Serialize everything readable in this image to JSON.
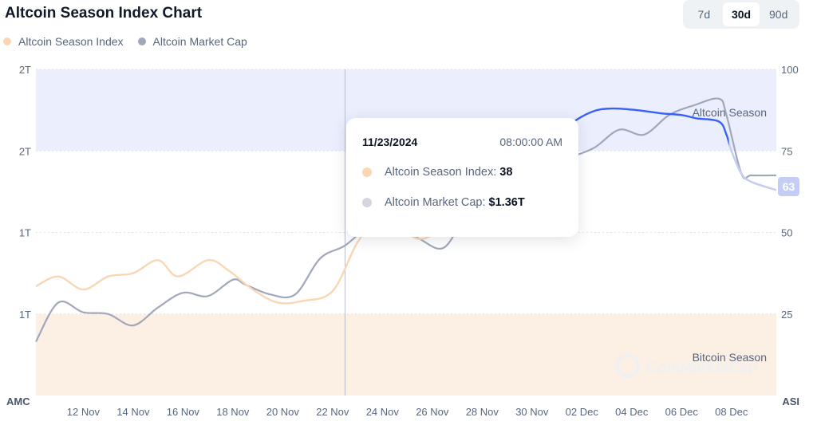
{
  "header": {
    "title": "Altcoin Season Index Chart"
  },
  "range_buttons": [
    {
      "label": "7d",
      "active": false
    },
    {
      "label": "30d",
      "active": true
    },
    {
      "label": "90d",
      "active": false
    }
  ],
  "legend": [
    {
      "label": "Altcoin Season Index",
      "color": "#fad7b4"
    },
    {
      "label": "Altcoin Market Cap",
      "color": "#a1a7bb"
    }
  ],
  "tooltip": {
    "date": "11/23/2024",
    "time": "08:00:00 AM",
    "index_label": "Altcoin Season Index:",
    "index_value": "38",
    "mcap_label": "Altcoin Market Cap:",
    "mcap_value": "$1.36T"
  },
  "zones": {
    "altcoin": "Altcoin Season",
    "bitcoin": "Bitcoin Season"
  },
  "watermark": "CoinMarketCap",
  "colors": {
    "index_line": "#fad7b4",
    "index_line_strong": "#3861fb",
    "index_line_faded": "#c3cdf5",
    "mcap_line": "#a1a7bb",
    "altcoin_zone": "#eaeefd",
    "bitcoin_zone": "#fcefe4",
    "badge": "#c3cdf5"
  },
  "chart_data": {
    "type": "line",
    "left_axis_label": "AMC",
    "right_axis_label": "ASI",
    "left_ticks": [
      "2T",
      "2T",
      "1T",
      "1T"
    ],
    "right_ticks": [
      "100",
      "75",
      "50",
      "25"
    ],
    "right_ylim": [
      0,
      100
    ],
    "x_ticks": [
      "12 Nov",
      "14 Nov",
      "16 Nov",
      "18 Nov",
      "20 Nov",
      "22 Nov",
      "24 Nov",
      "26 Nov",
      "28 Nov",
      "30 Nov",
      "02 Dec",
      "04 Dec",
      "06 Dec",
      "08 Dec"
    ],
    "x_range_days": [
      10.1,
      39.8
    ],
    "crosshair_x": 22.5,
    "current_value_badge": "63",
    "series": [
      {
        "name": "Altcoin Season Index",
        "axis": "right",
        "x": [
          10.1,
          11.0,
          12.0,
          13.0,
          14.0,
          15.0,
          15.8,
          17.0,
          17.8,
          18.8,
          19.8,
          20.8,
          22.0,
          23.0,
          23.8,
          24.6,
          25.5,
          26.5,
          27.5,
          29.0,
          30.5,
          31.5,
          32.4,
          33.2,
          34.2,
          35.2,
          36.0,
          36.6,
          37.5,
          37.8,
          38.0,
          38.4,
          38.8,
          39.8
        ],
        "y": [
          33.5,
          36.5,
          32.5,
          36.5,
          37.5,
          41.5,
          36.5,
          41.5,
          38.5,
          32.5,
          28.5,
          29.0,
          32.0,
          47.0,
          53.0,
          52.0,
          48.0,
          52.0,
          62.0,
          70.0,
          76.0,
          83.0,
          87.0,
          88.0,
          87.5,
          86.5,
          86.0,
          85.0,
          84.0,
          80.0,
          75.0,
          68.0,
          65.5,
          63.0
        ]
      },
      {
        "name": "Altcoin Market Cap",
        "axis": "right",
        "x": [
          10.1,
          11.0,
          12.0,
          13.0,
          14.0,
          15.0,
          16.0,
          17.0,
          18.0,
          18.5,
          19.5,
          20.5,
          21.5,
          22.5,
          23.5,
          24.5,
          25.5,
          26.5,
          27.5,
          28.5,
          29.5,
          30.5,
          31.5,
          32.5,
          33.5,
          34.5,
          35.5,
          36.5,
          37.5,
          37.8,
          38.4,
          38.8,
          39.8
        ],
        "y": [
          16.5,
          28.5,
          25.5,
          25.0,
          21.5,
          27.0,
          31.5,
          30.5,
          35.5,
          34.0,
          31.0,
          31.0,
          42.0,
          46.0,
          52.0,
          53.0,
          48.0,
          45.5,
          58.0,
          66.0,
          70.0,
          71.0,
          73.0,
          76.0,
          81.5,
          80.0,
          86.0,
          89.0,
          91.0,
          86.0,
          68.0,
          67.5,
          67.5
        ]
      }
    ]
  }
}
